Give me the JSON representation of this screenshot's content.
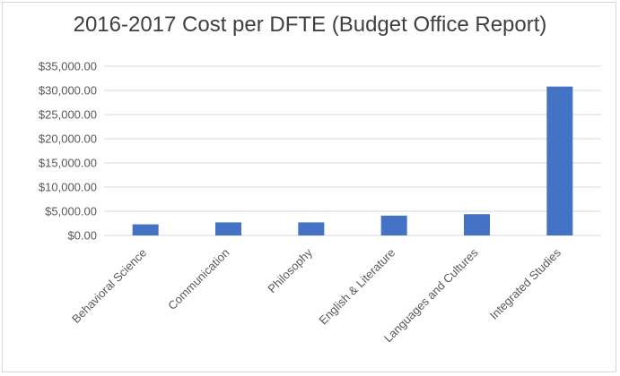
{
  "chart_data": {
    "type": "bar",
    "title": "2016-2017 Cost per DFTE (Budget Office Report)",
    "xlabel": "",
    "ylabel": "",
    "categories": [
      "Behavioral Science",
      "Communication",
      "Philosophy",
      "English & Literature",
      "Languages and Cultures",
      "Integrated Studies"
    ],
    "values": [
      2300,
      2700,
      2700,
      4100,
      4400,
      30800
    ],
    "ylim": [
      0,
      35000
    ],
    "y_ticks": [
      "$0.00",
      "$5,000.00",
      "$10,000.00",
      "$15,000.00",
      "$20,000.00",
      "$25,000.00",
      "$30,000.00",
      "$35,000.00"
    ],
    "grid": true,
    "legend": "none",
    "bar_color": "#4472c4",
    "grid_color": "#d9d9d9"
  }
}
